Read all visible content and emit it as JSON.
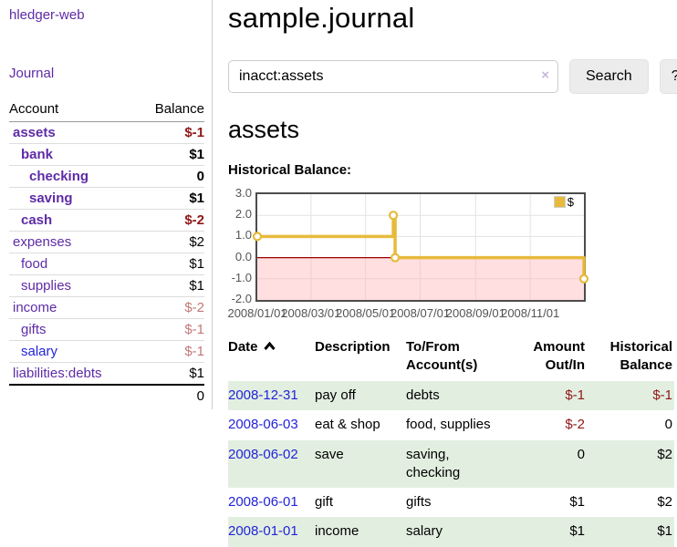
{
  "sidebar": {
    "brand": "hledger-web",
    "journal_link": "Journal",
    "accounts": {
      "col_account": "Account",
      "col_balance": "Balance",
      "rows": [
        {
          "name": "assets",
          "balance": "$-1",
          "level": 1,
          "bold": true,
          "link": "purple",
          "neg": "strong"
        },
        {
          "name": "bank",
          "balance": "$1",
          "level": 2,
          "bold": true,
          "link": "purple",
          "neg": "none"
        },
        {
          "name": "checking",
          "balance": "0",
          "level": 3,
          "bold": true,
          "link": "purple",
          "neg": "none"
        },
        {
          "name": "saving",
          "balance": "$1",
          "level": 3,
          "bold": true,
          "link": "purple",
          "neg": "none"
        },
        {
          "name": "cash",
          "balance": "$-2",
          "level": 2,
          "bold": true,
          "link": "purple",
          "neg": "strong"
        },
        {
          "name": "expenses",
          "balance": "$2",
          "level": 1,
          "bold": false,
          "link": "purple",
          "neg": "none"
        },
        {
          "name": "food",
          "balance": "$1",
          "level": 2,
          "bold": false,
          "link": "purple",
          "neg": "none"
        },
        {
          "name": "supplies",
          "balance": "$1",
          "level": 2,
          "bold": false,
          "link": "purple",
          "neg": "none"
        },
        {
          "name": "income",
          "balance": "$-2",
          "level": 1,
          "bold": false,
          "link": "purple",
          "neg": "faded"
        },
        {
          "name": "gifts",
          "balance": "$-1",
          "level": 2,
          "bold": false,
          "link": "purple",
          "neg": "faded"
        },
        {
          "name": "salary",
          "balance": "$-1",
          "level": 2,
          "bold": false,
          "link": "blue",
          "neg": "faded"
        },
        {
          "name": "liabilities:debts",
          "balance": "$1",
          "level": 1,
          "bold": false,
          "link": "purple",
          "neg": "none"
        }
      ],
      "total": "0"
    }
  },
  "header": {
    "title": "sample.journal"
  },
  "search": {
    "value": "inacct:assets",
    "clear": "×",
    "search_button": "Search",
    "help_button": "?"
  },
  "account_view": {
    "heading": "assets",
    "chart_title": "Historical Balance:"
  },
  "chart_data": {
    "type": "line",
    "step": true,
    "title": "Historical Balance",
    "legend": [
      {
        "label": "$",
        "color": "#e7ba3c"
      }
    ],
    "x_range": [
      "2008-01-01",
      "2008-12-31"
    ],
    "ylim": [
      -2,
      3
    ],
    "yticks": [
      "3.0",
      "2.0",
      "1.0",
      "0.0",
      "-1.0",
      "-2.0"
    ],
    "xticks": [
      {
        "label": "2008/01/01",
        "date": "2008-01-01"
      },
      {
        "label": "2008/03/01",
        "date": "2008-03-01"
      },
      {
        "label": "2008/05/01",
        "date": "2008-05-01"
      },
      {
        "label": "2008/07/01",
        "date": "2008-07-01"
      },
      {
        "label": "2008/09/01",
        "date": "2008-09-01"
      },
      {
        "label": "2008/11/01",
        "date": "2008-11-01"
      }
    ],
    "series": [
      {
        "name": "$",
        "color": "#e7ba3c",
        "points": [
          {
            "date": "2008-01-01",
            "value": 1
          },
          {
            "date": "2008-06-01",
            "value": 2
          },
          {
            "date": "2008-06-03",
            "value": 0
          },
          {
            "date": "2008-12-31",
            "value": -1
          }
        ]
      }
    ],
    "grid": true,
    "grid_color": "#e3e3e3",
    "negative_region_color": "#ffb3b3",
    "zero_line_color": "#9b0000",
    "legend_position": "top-right"
  },
  "register": {
    "headers": {
      "date": "Date",
      "description": "Description",
      "tofrom": "To/From Account(s)",
      "amount": "Amount Out/In",
      "balance": "Historical Balance"
    },
    "rows": [
      {
        "date": "2008-12-31",
        "description": "pay off",
        "tofrom": "debts",
        "amount": "$-1",
        "balance": "$-1",
        "amount_neg": true,
        "balance_neg": true
      },
      {
        "date": "2008-06-03",
        "description": "eat & shop",
        "tofrom": "food, supplies",
        "amount": "$-2",
        "balance": "0",
        "amount_neg": true,
        "balance_neg": false
      },
      {
        "date": "2008-06-02",
        "description": "save",
        "tofrom": "saving, checking",
        "amount": "0",
        "balance": "$2",
        "amount_neg": false,
        "balance_neg": false
      },
      {
        "date": "2008-06-01",
        "description": "gift",
        "tofrom": "gifts",
        "amount": "$1",
        "balance": "$2",
        "amount_neg": false,
        "balance_neg": false
      },
      {
        "date": "2008-01-01",
        "description": "income",
        "tofrom": "salary",
        "amount": "$1",
        "balance": "$1",
        "amount_neg": false,
        "balance_neg": false
      }
    ]
  }
}
